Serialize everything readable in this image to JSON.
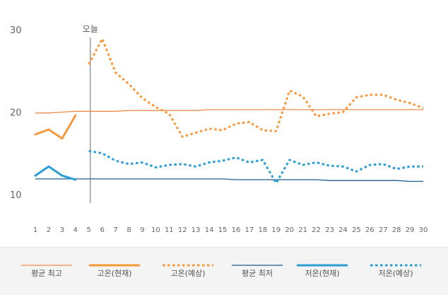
{
  "chart_data": {
    "type": "line",
    "x": [
      1,
      2,
      3,
      4,
      5,
      6,
      7,
      8,
      9,
      10,
      11,
      12,
      13,
      14,
      15,
      16,
      17,
      18,
      19,
      20,
      21,
      22,
      23,
      24,
      25,
      26,
      27,
      28,
      29,
      30
    ],
    "ylim": [
      9,
      31
    ],
    "yticks": [
      10,
      20,
      30
    ],
    "today": {
      "x": 5,
      "label": "오늘"
    },
    "series": [
      {
        "name": "평균 최고",
        "style": "thin",
        "color": "#ee8a4c",
        "x": [
          1,
          2,
          3,
          4,
          5,
          6,
          7,
          8,
          9,
          10,
          11,
          12,
          13,
          14,
          15,
          16,
          17,
          18,
          19,
          20,
          21,
          22,
          23,
          24,
          25,
          26,
          27,
          28,
          29,
          30
        ],
        "values": [
          19.9,
          19.9,
          20.0,
          20.1,
          20.1,
          20.1,
          20.1,
          20.2,
          20.2,
          20.2,
          20.2,
          20.2,
          20.2,
          20.3,
          20.3,
          20.3,
          20.3,
          20.3,
          20.3,
          20.3,
          20.3,
          20.3,
          20.3,
          20.3,
          20.3,
          20.3,
          20.3,
          20.3,
          20.3,
          20.3
        ]
      },
      {
        "name": "고온(현재)",
        "style": "thick",
        "color": "#f7993a",
        "x": [
          1,
          2,
          3,
          4
        ],
        "values": [
          17.3,
          17.9,
          16.8,
          19.6
        ]
      },
      {
        "name": "고온(예상)",
        "style": "dotted",
        "color": "#f7993a",
        "x": [
          5,
          6,
          7,
          8,
          9,
          10,
          11,
          12,
          13,
          14,
          15,
          16,
          17,
          18,
          19,
          20,
          21,
          22,
          23,
          24,
          25,
          26,
          27,
          28,
          29,
          30
        ],
        "values": [
          25.8,
          28.9,
          24.8,
          23.4,
          21.7,
          20.6,
          19.8,
          17.0,
          17.5,
          18.0,
          17.8,
          18.6,
          18.8,
          17.8,
          17.7,
          22.6,
          21.9,
          19.5,
          19.8,
          20.0,
          21.8,
          22.1,
          22.1,
          21.5,
          21.1,
          20.5
        ]
      },
      {
        "name": "평균 최저",
        "style": "thin",
        "color": "#1d5e8e",
        "x": [
          1,
          2,
          3,
          4,
          5,
          6,
          7,
          8,
          9,
          10,
          11,
          12,
          13,
          14,
          15,
          16,
          17,
          18,
          19,
          20,
          21,
          22,
          23,
          24,
          25,
          26,
          27,
          28,
          29,
          30
        ],
        "values": [
          11.9,
          11.9,
          11.9,
          11.9,
          11.9,
          11.9,
          11.9,
          11.9,
          11.9,
          11.9,
          11.9,
          11.9,
          11.9,
          11.9,
          11.9,
          11.8,
          11.8,
          11.8,
          11.8,
          11.8,
          11.8,
          11.8,
          11.7,
          11.7,
          11.7,
          11.7,
          11.7,
          11.7,
          11.6,
          11.6
        ]
      },
      {
        "name": "저온(현재)",
        "style": "thick",
        "color": "#2b9ed4",
        "x": [
          1,
          2,
          3,
          4
        ],
        "values": [
          12.3,
          13.4,
          12.3,
          11.8
        ]
      },
      {
        "name": "저온(예상)",
        "style": "dotted",
        "color": "#2b9ed4",
        "x": [
          5,
          6,
          7,
          8,
          9,
          10,
          11,
          12,
          13,
          14,
          15,
          16,
          17,
          18,
          19,
          20,
          21,
          22,
          23,
          24,
          25,
          26,
          27,
          28,
          29,
          30
        ],
        "values": [
          15.3,
          15.0,
          14.1,
          13.7,
          13.9,
          13.3,
          13.6,
          13.7,
          13.4,
          13.9,
          14.1,
          14.5,
          13.9,
          14.2,
          11.4,
          14.2,
          13.6,
          13.9,
          13.5,
          13.4,
          12.8,
          13.6,
          13.7,
          13.1,
          13.4,
          13.4
        ]
      }
    ]
  }
}
